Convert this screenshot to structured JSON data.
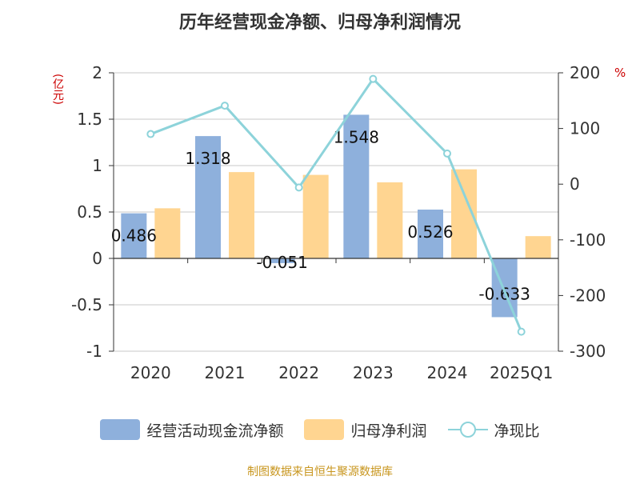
{
  "title": "历年经营现金净额、归母净利润情况",
  "unit_left": "(亿元)",
  "unit_right": "%",
  "source": "制图数据来自恒生聚源数据库",
  "colors": {
    "cash": "#8eb0dc",
    "profit": "#ffd591",
    "ratio": "#8dd3da"
  },
  "chart_data": {
    "type": "bar",
    "categories": [
      "2020",
      "2021",
      "2022",
      "2023",
      "2024",
      "2025Q1"
    ],
    "series": [
      {
        "name": "经营活动现金流净额",
        "type": "bar",
        "axis": "left",
        "values": [
          0.486,
          1.318,
          -0.051,
          1.548,
          0.526,
          -0.633
        ],
        "labels": [
          "0.486",
          "1.318",
          "-0.051",
          "1.548",
          "0.526",
          "-0.633"
        ]
      },
      {
        "name": "归母净利润",
        "type": "bar",
        "axis": "left",
        "values": [
          0.54,
          0.93,
          0.9,
          0.82,
          0.96,
          0.24
        ]
      },
      {
        "name": "净现比",
        "type": "line",
        "axis": "right",
        "values": [
          90,
          141,
          -6,
          189,
          55,
          -265
        ]
      }
    ],
    "y_left": {
      "min": -1,
      "max": 2,
      "ticks": [
        "-1",
        "-0.5",
        "0",
        "0.5",
        "1",
        "1.5",
        "2"
      ]
    },
    "y_right": {
      "min": -300,
      "max": 200,
      "ticks": [
        "-300",
        "-200",
        "-100",
        "0",
        "100",
        "200"
      ]
    },
    "grid": true,
    "legend_position": "bottom"
  }
}
